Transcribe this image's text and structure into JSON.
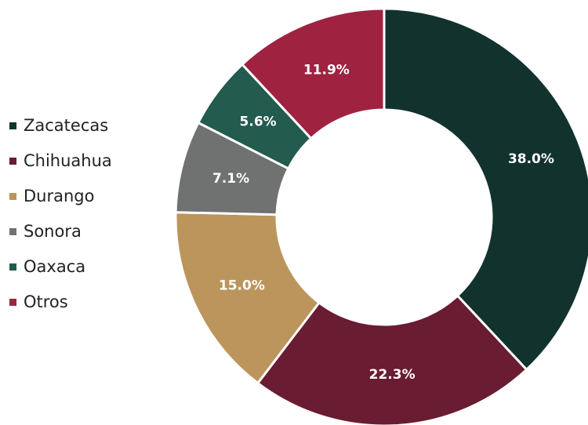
{
  "chart_data": {
    "type": "donut",
    "categories": [
      "Zacatecas",
      "Chihuahua",
      "Durango",
      "Sonora",
      "Oaxaca",
      "Otros"
    ],
    "values": [
      38.0,
      22.3,
      15.0,
      7.1,
      5.6,
      11.9
    ],
    "value_labels": [
      "38.0%",
      "22.3%",
      "15.0%",
      "7.1%",
      "5.6%",
      "11.9%"
    ],
    "colors": [
      "#12332d",
      "#691c32",
      "#bc955c",
      "#6f7271",
      "#235b4e",
      "#9f2241"
    ],
    "legend": "left"
  }
}
